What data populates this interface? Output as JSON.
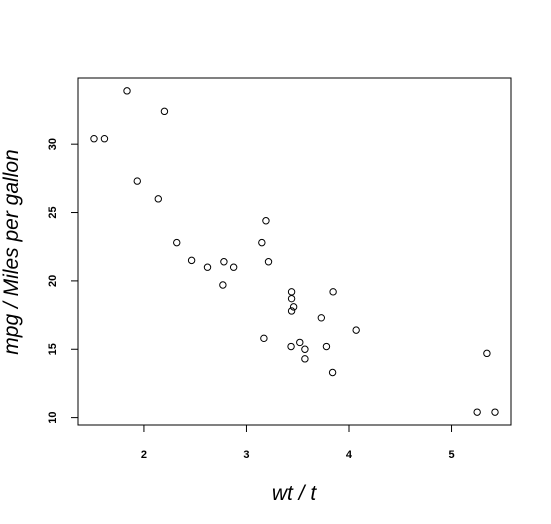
{
  "chart_data": {
    "type": "scatter",
    "x_label": "wt / t",
    "y_label": "mpg / Miles per gallon",
    "x": [
      2.62,
      2.875,
      2.32,
      3.215,
      3.44,
      3.46,
      3.57,
      3.19,
      3.15,
      3.44,
      3.44,
      4.07,
      3.73,
      3.78,
      5.25,
      5.424,
      5.345,
      2.2,
      1.615,
      1.835,
      2.465,
      3.52,
      3.435,
      3.84,
      3.845,
      1.935,
      2.14,
      1.513,
      3.17,
      2.77,
      3.57,
      2.78
    ],
    "y": [
      21.0,
      21.0,
      22.8,
      21.4,
      18.7,
      18.1,
      14.3,
      24.4,
      22.8,
      19.2,
      17.8,
      16.4,
      17.3,
      15.2,
      10.4,
      10.4,
      14.7,
      32.4,
      30.4,
      33.9,
      21.5,
      15.5,
      15.2,
      13.3,
      19.2,
      27.3,
      26.0,
      30.4,
      15.8,
      19.7,
      15.0,
      21.4
    ],
    "color": "#000000",
    "xlim": [
      1.357,
      5.58
    ],
    "ylim": [
      9.46,
      34.84
    ],
    "xticks": [
      2,
      3,
      4,
      5
    ],
    "yticks": [
      10,
      15,
      20,
      25,
      30
    ]
  }
}
